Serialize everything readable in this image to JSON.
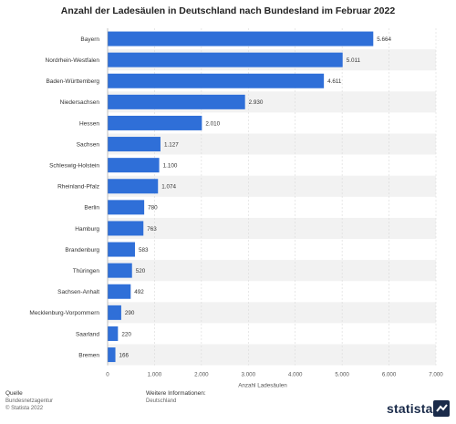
{
  "chart_data": {
    "type": "bar",
    "orientation": "horizontal",
    "title": "Anzahl der Ladesäulen in Deutschland nach Bundesland im Februar 2022",
    "xlabel": "Anzahl Ladesäulen",
    "ylabel": "",
    "xlim": [
      0,
      7000
    ],
    "x_ticks": [
      "0",
      "1.000",
      "2.000",
      "3.000",
      "4.000",
      "5.000",
      "6.000",
      "7.000"
    ],
    "grid": true,
    "bar_color": "#2f6fd8",
    "categories": [
      "Bayern",
      "Nordrhein-Westfalen",
      "Baden-Württemberg",
      "Niedersachsen",
      "Hessen",
      "Sachsen",
      "Schleswig-Holstein",
      "Rheinland-Pfalz",
      "Berlin",
      "Hamburg",
      "Brandenburg",
      "Thüringen",
      "Sachsen-Anhalt",
      "Mecklenburg-Vorpommern",
      "Saarland",
      "Bremen"
    ],
    "values": [
      5664,
      5011,
      4611,
      2930,
      2010,
      1127,
      1100,
      1074,
      780,
      763,
      583,
      520,
      492,
      290,
      220,
      166
    ],
    "value_labels": [
      "5.664",
      "5.011",
      "4.611",
      "2.930",
      "2.010",
      "1.127",
      "1.100",
      "1.074",
      "780",
      "763",
      "583",
      "520",
      "492",
      "290",
      "220",
      "166"
    ]
  },
  "footer": {
    "source_heading": "Quelle",
    "source_lines": [
      "Bundesnetzagentur",
      "© Statista 2022"
    ],
    "info_heading": "Weitere Informationen:",
    "info_lines": [
      "Deutschland"
    ],
    "brand": "statista"
  }
}
